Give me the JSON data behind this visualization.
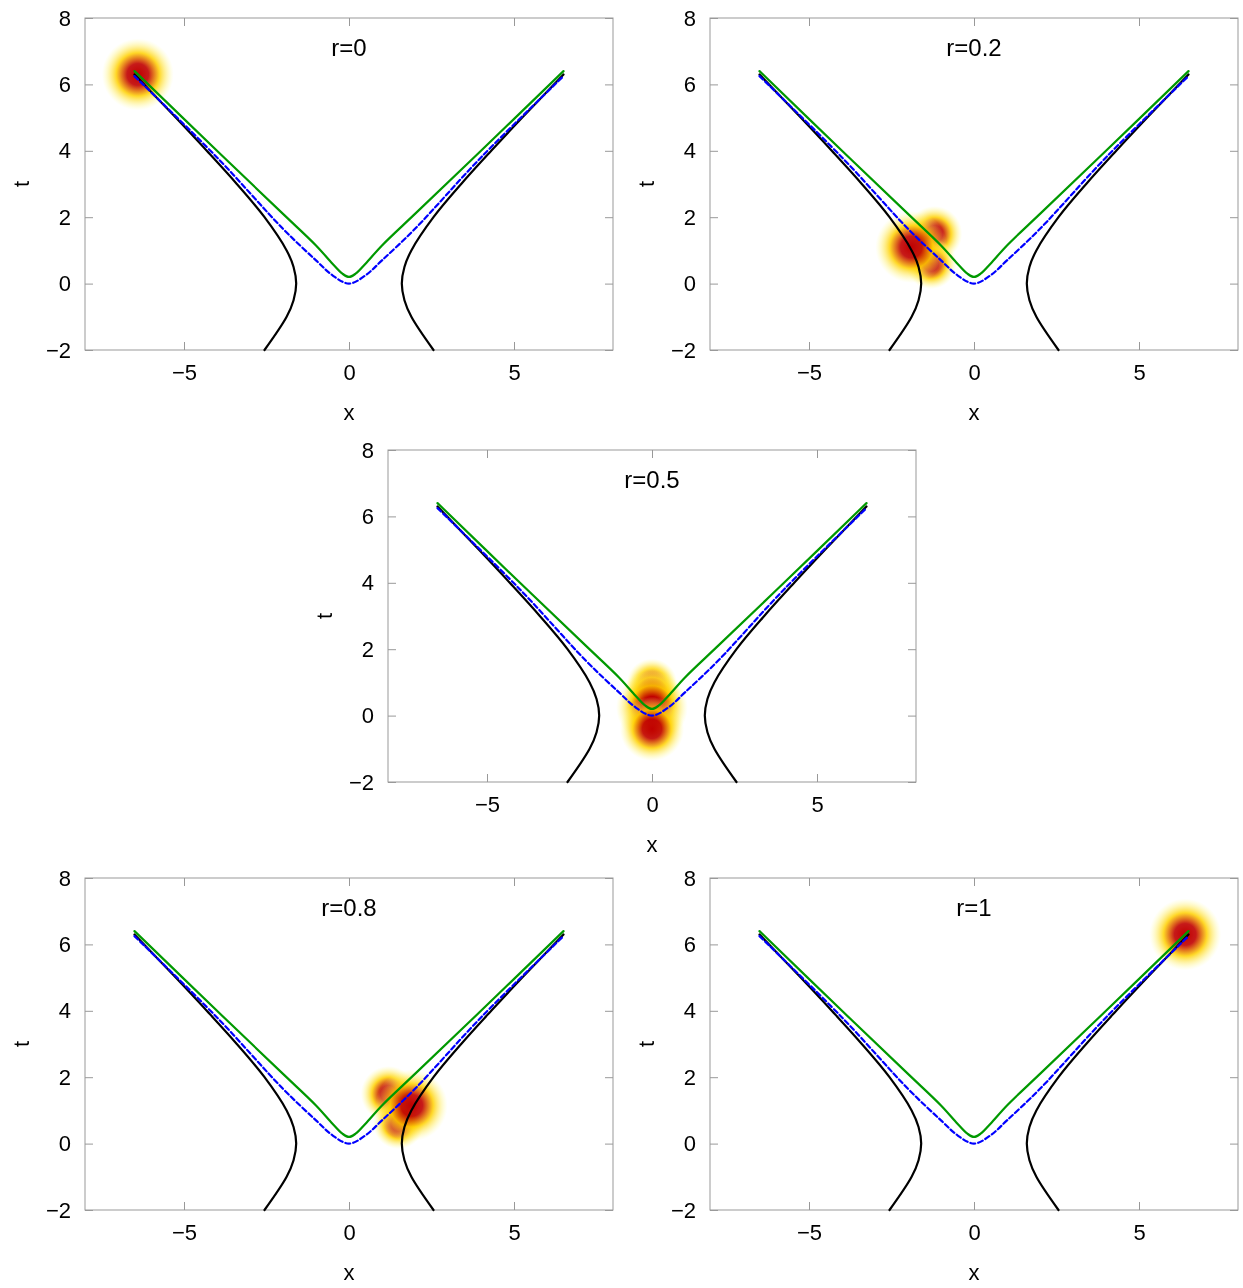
{
  "chart_data": [
    {
      "type": "line",
      "title": "r=0",
      "xlabel": "x",
      "ylabel": "t",
      "xlim": [
        -8,
        8
      ],
      "ylim": [
        -2,
        8
      ],
      "xticks": [
        -5,
        0,
        5
      ],
      "yticks": [
        -2,
        0,
        2,
        4,
        6,
        8
      ],
      "series": [
        {
          "type": "bubble",
          "color": "#c00000",
          "x": [
            -6.4
          ],
          "values": [
            6.3
          ],
          "sizes": [
            1
          ]
        },
        {
          "color": "#000000",
          "x": [
            -2.56,
            -1.89,
            -1.68,
            -1.6,
            -1.68,
            -1.89,
            -2.56,
            -3.4,
            -4.31,
            -5.25,
            -6.5
          ],
          "values": [
            -2,
            -1,
            -0.5,
            0,
            0.5,
            1,
            2,
            3,
            4,
            5,
            6.3
          ]
        },
        {
          "color": "#000000",
          "x": [
            2.56,
            1.89,
            1.68,
            1.6,
            1.68,
            1.89,
            2.56,
            3.4,
            4.31,
            5.25,
            6.5
          ],
          "values": [
            -2,
            -1,
            -0.5,
            0,
            0.5,
            1,
            2,
            3,
            4,
            5,
            6.3
          ]
        },
        {
          "color": "#0000ff",
          "line_style": "dashed",
          "x": [
            -6.5,
            -4,
            -2,
            -1,
            -0.5,
            0,
            0.5,
            1,
            2,
            4,
            6.5
          ],
          "values": [
            6.25,
            3.8,
            1.65,
            0.7,
            0.25,
            0,
            0.25,
            0.7,
            1.65,
            3.8,
            6.25
          ]
        },
        {
          "color": "#009900",
          "x": [
            -6.5,
            -4,
            -2,
            -1,
            -0.5,
            -0.2,
            0,
            0.2,
            0.5,
            1,
            2,
            4,
            6.5
          ],
          "values": [
            6.4,
            4,
            2.1,
            1.15,
            0.6,
            0.3,
            0.2,
            0.3,
            0.6,
            1.15,
            2.1,
            4,
            6.4
          ]
        }
      ]
    },
    {
      "type": "line",
      "title": "r=0.2",
      "xlabel": "x",
      "ylabel": "t",
      "xlim": [
        -8,
        8
      ],
      "ylim": [
        -2,
        8
      ],
      "xticks": [
        -5,
        0,
        5
      ],
      "yticks": [
        -2,
        0,
        2,
        4,
        6,
        8
      ],
      "series": [
        {
          "type": "bubble",
          "color": "#c00000",
          "x": [
            -1.2,
            -1.3,
            -1.9
          ],
          "values": [
            1.5,
            0.6,
            1.1
          ],
          "sizes": [
            0.6,
            0.5,
            1
          ]
        },
        {
          "color": "#000000",
          "x": [
            -2.56,
            -1.89,
            -1.68,
            -1.6,
            -1.68,
            -1.89,
            -2.56,
            -3.4,
            -4.31,
            -5.25,
            -6.5
          ],
          "values": [
            -2,
            -1,
            -0.5,
            0,
            0.5,
            1,
            2,
            3,
            4,
            5,
            6.3
          ]
        },
        {
          "color": "#000000",
          "x": [
            2.56,
            1.89,
            1.68,
            1.6,
            1.68,
            1.89,
            2.56,
            3.4,
            4.31,
            5.25,
            6.5
          ],
          "values": [
            -2,
            -1,
            -0.5,
            0,
            0.5,
            1,
            2,
            3,
            4,
            5,
            6.3
          ]
        },
        {
          "color": "#0000ff",
          "line_style": "dashed",
          "x": [
            -6.5,
            -4,
            -2,
            -1,
            -0.5,
            0,
            0.5,
            1,
            2,
            4,
            6.5
          ],
          "values": [
            6.25,
            3.8,
            1.65,
            0.7,
            0.25,
            0,
            0.25,
            0.7,
            1.65,
            3.8,
            6.25
          ]
        },
        {
          "color": "#009900",
          "x": [
            -6.5,
            -4,
            -2,
            -1,
            -0.5,
            -0.2,
            0,
            0.2,
            0.5,
            1,
            2,
            4,
            6.5
          ],
          "values": [
            6.4,
            4,
            2.1,
            1.15,
            0.6,
            0.3,
            0.2,
            0.3,
            0.6,
            1.15,
            2.1,
            4,
            6.4
          ]
        }
      ]
    },
    {
      "type": "line",
      "title": "r=0.5",
      "xlabel": "x",
      "ylabel": "t",
      "xlim": [
        -8,
        8
      ],
      "ylim": [
        -2,
        8
      ],
      "xticks": [
        -5,
        0,
        5
      ],
      "yticks": [
        -2,
        0,
        2,
        4,
        6,
        8
      ],
      "series": [
        {
          "type": "bubble",
          "color": "#c00000",
          "x": [
            0,
            0,
            0,
            0
          ],
          "values": [
            0.95,
            0.65,
            0.25,
            -0.4
          ],
          "sizes": [
            0.5,
            0.6,
            1,
            0.8
          ]
        },
        {
          "color": "#000000",
          "x": [
            -2.56,
            -1.89,
            -1.68,
            -1.6,
            -1.68,
            -1.89,
            -2.56,
            -3.4,
            -4.31,
            -5.25,
            -6.5
          ],
          "values": [
            -2,
            -1,
            -0.5,
            0,
            0.5,
            1,
            2,
            3,
            4,
            5,
            6.3
          ]
        },
        {
          "color": "#000000",
          "x": [
            2.56,
            1.89,
            1.68,
            1.6,
            1.68,
            1.89,
            2.56,
            3.4,
            4.31,
            5.25,
            6.5
          ],
          "values": [
            -2,
            -1,
            -0.5,
            0,
            0.5,
            1,
            2,
            3,
            4,
            5,
            6.3
          ]
        },
        {
          "color": "#0000ff",
          "line_style": "dashed",
          "x": [
            -6.5,
            -4,
            -2,
            -1,
            -0.5,
            0,
            0.5,
            1,
            2,
            4,
            6.5
          ],
          "values": [
            6.25,
            3.8,
            1.65,
            0.7,
            0.25,
            0,
            0.25,
            0.7,
            1.65,
            3.8,
            6.25
          ]
        },
        {
          "color": "#009900",
          "x": [
            -6.5,
            -4,
            -2,
            -1,
            -0.5,
            -0.2,
            0,
            0.2,
            0.5,
            1,
            2,
            4,
            6.5
          ],
          "values": [
            6.4,
            4,
            2.1,
            1.15,
            0.6,
            0.3,
            0.2,
            0.3,
            0.6,
            1.15,
            2.1,
            4,
            6.4
          ]
        }
      ]
    },
    {
      "type": "line",
      "title": "r=0.8",
      "xlabel": "x",
      "ylabel": "t",
      "xlim": [
        -8,
        8
      ],
      "ylim": [
        -2,
        8
      ],
      "xticks": [
        -5,
        0,
        5
      ],
      "yticks": [
        -2,
        0,
        2,
        4,
        6,
        8
      ],
      "series": [
        {
          "type": "bubble",
          "color": "#c00000",
          "x": [
            1.2,
            1.5,
            1.9
          ],
          "values": [
            1.5,
            0.6,
            1.15
          ],
          "sizes": [
            0.6,
            0.5,
            1
          ]
        },
        {
          "color": "#000000",
          "x": [
            -2.56,
            -1.89,
            -1.68,
            -1.6,
            -1.68,
            -1.89,
            -2.56,
            -3.4,
            -4.31,
            -5.25,
            -6.5
          ],
          "values": [
            -2,
            -1,
            -0.5,
            0,
            0.5,
            1,
            2,
            3,
            4,
            5,
            6.3
          ]
        },
        {
          "color": "#000000",
          "x": [
            2.56,
            1.89,
            1.68,
            1.6,
            1.68,
            1.89,
            2.56,
            3.4,
            4.31,
            5.25,
            6.5
          ],
          "values": [
            -2,
            -1,
            -0.5,
            0,
            0.5,
            1,
            2,
            3,
            4,
            5,
            6.3
          ]
        },
        {
          "color": "#0000ff",
          "line_style": "dashed",
          "x": [
            -6.5,
            -4,
            -2,
            -1,
            -0.5,
            0,
            0.5,
            1,
            2,
            4,
            6.5
          ],
          "values": [
            6.25,
            3.8,
            1.65,
            0.7,
            0.25,
            0,
            0.25,
            0.7,
            1.65,
            3.8,
            6.25
          ]
        },
        {
          "color": "#009900",
          "x": [
            -6.5,
            -4,
            -2,
            -1,
            -0.5,
            -0.2,
            0,
            0.2,
            0.5,
            1,
            2,
            4,
            6.5
          ],
          "values": [
            6.4,
            4,
            2.1,
            1.15,
            0.6,
            0.3,
            0.2,
            0.3,
            0.6,
            1.15,
            2.1,
            4,
            6.4
          ]
        }
      ]
    },
    {
      "type": "line",
      "title": "r=1",
      "xlabel": "x",
      "ylabel": "t",
      "xlim": [
        -8,
        8
      ],
      "ylim": [
        -2,
        8
      ],
      "xticks": [
        -5,
        0,
        5
      ],
      "yticks": [
        -2,
        0,
        2,
        4,
        6,
        8
      ],
      "series": [
        {
          "type": "bubble",
          "color": "#c00000",
          "x": [
            6.4
          ],
          "values": [
            6.3
          ],
          "sizes": [
            1
          ]
        },
        {
          "color": "#000000",
          "x": [
            -2.56,
            -1.89,
            -1.68,
            -1.6,
            -1.68,
            -1.89,
            -2.56,
            -3.4,
            -4.31,
            -5.25,
            -6.5
          ],
          "values": [
            -2,
            -1,
            -0.5,
            0,
            0.5,
            1,
            2,
            3,
            4,
            5,
            6.3
          ]
        },
        {
          "color": "#000000",
          "x": [
            2.56,
            1.89,
            1.68,
            1.6,
            1.68,
            1.89,
            2.56,
            3.4,
            4.31,
            5.25,
            6.5
          ],
          "values": [
            -2,
            -1,
            -0.5,
            0,
            0.5,
            1,
            2,
            3,
            4,
            5,
            6.3
          ]
        },
        {
          "color": "#0000ff",
          "line_style": "dashed",
          "x": [
            -6.5,
            -4,
            -2,
            -1,
            -0.5,
            0,
            0.5,
            1,
            2,
            4,
            6.5
          ],
          "values": [
            6.25,
            3.8,
            1.65,
            0.7,
            0.25,
            0,
            0.25,
            0.7,
            1.65,
            3.8,
            6.25
          ]
        },
        {
          "color": "#009900",
          "x": [
            -6.5,
            -4,
            -2,
            -1,
            -0.5,
            -0.2,
            0,
            0.2,
            0.5,
            1,
            2,
            4,
            6.5
          ],
          "values": [
            6.4,
            4,
            2.1,
            1.15,
            0.6,
            0.3,
            0.2,
            0.3,
            0.6,
            1.15,
            2.1,
            4,
            6.4
          ]
        }
      ]
    }
  ]
}
